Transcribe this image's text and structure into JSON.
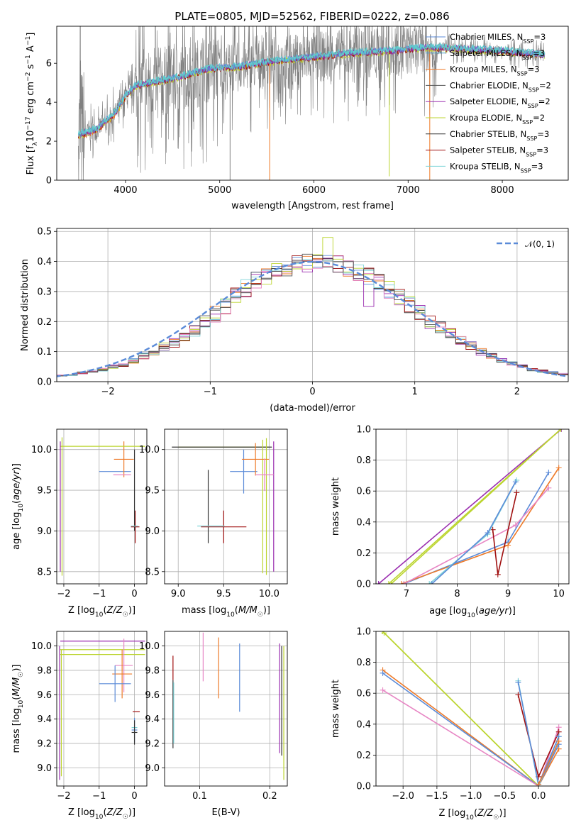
{
  "title": "PLATE=0805, MJD=52562, FIBERID=0222, z=0.086",
  "colors": {
    "Chabrier MILES": "#5b8bd8",
    "Salpeter MILES": "#4aa0c8",
    "Kroupa MILES": "#ee7a28",
    "Chabrier ELODIE": "#555555",
    "Salpeter ELODIE": "#9b2fb0",
    "Kroupa ELODIE": "#bcd530",
    "Chabrier STELIB": "#333333",
    "Salpeter STELIB": "#a01010",
    "Kroupa STELIB": "#7fd4d8",
    "pink": "#e786c4",
    "data": "#808080",
    "fit": "#60cccc",
    "gaussian": "#5b8bd8"
  },
  "chart_data": [
    {
      "type": "line",
      "name": "spectrum",
      "xlabel": "wavelength [Angstrom, rest frame]",
      "ylabel": "Flux [f_λ 10^-17 erg cm^-2 s^-1 A^-1]",
      "xlim": [
        3270,
        8700
      ],
      "ylim": [
        0,
        7.9
      ],
      "xticks": [
        "4000",
        "5000",
        "6000",
        "7000",
        "8000"
      ],
      "yticks": [
        "0",
        "2",
        "4",
        "6"
      ],
      "legend_position": "top-right",
      "continuum": {
        "x": [
          3500,
          3700,
          3900,
          4000,
          4100,
          4300,
          4600,
          4900,
          5200,
          5600,
          6000,
          6400,
          6800,
          7200,
          7600,
          8000,
          8450
        ],
        "y": [
          2.3,
          2.6,
          3.5,
          4.3,
          4.8,
          5.0,
          5.3,
          5.7,
          5.8,
          6.1,
          6.3,
          6.5,
          6.6,
          6.8,
          6.7,
          6.6,
          6.4
        ]
      },
      "legend": [
        "Chabrier MILES, N_SSP=3",
        "Salpeter MILES, N_SSP=3",
        "Kroupa MILES, N_SSP=3",
        "Chabrier ELODIE, N_SSP=2",
        "Salpeter ELODIE, N_SSP=2",
        "Kroupa ELODIE, N_SSP=2",
        "Chabrier STELIB, N_SSP=3",
        "Salpeter STELIB, N_SSP=3",
        "Kroupa STELIB, N_SSP=3"
      ]
    },
    {
      "type": "line",
      "name": "residual histogram",
      "xlabel": "(data-model)/error",
      "ylabel": "Normed distribution",
      "xlim": [
        -2.5,
        2.5
      ],
      "ylim": [
        0,
        0.51
      ],
      "xticks": [
        "−2",
        "−1",
        "0",
        "1",
        "2"
      ],
      "yticks": [
        "0.0",
        "0.1",
        "0.2",
        "0.3",
        "0.4",
        "0.5"
      ],
      "legend": [
        "𝒩(0, 1)"
      ],
      "legend_position": "top-right",
      "bin_width": 0.1,
      "bin_start": -2.5,
      "base_heights": [
        0.02,
        0.022,
        0.03,
        0.035,
        0.04,
        0.05,
        0.055,
        0.07,
        0.085,
        0.1,
        0.115,
        0.13,
        0.145,
        0.17,
        0.2,
        0.225,
        0.25,
        0.285,
        0.31,
        0.335,
        0.35,
        0.365,
        0.38,
        0.39,
        0.395,
        0.4,
        0.398,
        0.39,
        0.38,
        0.365,
        0.35,
        0.33,
        0.305,
        0.28,
        0.255,
        0.23,
        0.2,
        0.18,
        0.16,
        0.14,
        0.12,
        0.1,
        0.085,
        0.07,
        0.06,
        0.05,
        0.04,
        0.035,
        0.03,
        0.025
      ]
    },
    {
      "type": "scatter",
      "name": "age vs Z",
      "xlabel": "Z [log10(Z/Z☉)]",
      "ylabel": "age [log10(age/yr)]",
      "xlim": [
        -2.2,
        0.35
      ],
      "ylim": [
        8.35,
        10.25
      ],
      "xticks": [
        "−2",
        "−1",
        "0"
      ],
      "yticks": [
        "8.5",
        "9.0",
        "9.5",
        "10.0"
      ],
      "points": [
        {
          "c": "Chabrier MILES",
          "x": -0.55,
          "xe": 0.45,
          "y": 9.73,
          "ye": 0.0
        },
        {
          "c": "Kroupa MILES",
          "x": -0.3,
          "xe": 0.28,
          "y": 9.88,
          "ye": 0.22
        },
        {
          "c": "pink",
          "x": -0.35,
          "xe": 0.25,
          "y": 9.69,
          "ye": 0.0
        },
        {
          "c": "Kroupa ELODIE",
          "x": -0.9,
          "xe": 1.2,
          "y": 10.04,
          "ye": 0.0
        },
        {
          "c": "Kroupa ELODIE",
          "x": -2.05,
          "xe": 0.0,
          "y": 9.3,
          "ye": 0.85
        },
        {
          "c": "Salpeter ELODIE",
          "x": -2.1,
          "xe": 0.0,
          "y": 9.3,
          "ye": 0.8
        },
        {
          "c": "Salpeter STELIB",
          "x": 0.02,
          "xe": 0.12,
          "y": 9.05,
          "ye": 0.2
        },
        {
          "c": "Chabrier STELIB",
          "x": 0.0,
          "xe": 0.0,
          "y": 9.5,
          "ye": 0.5
        },
        {
          "c": "Kroupa STELIB",
          "x": 0.0,
          "xe": 0.1,
          "y": 9.06,
          "ye": 0.0
        }
      ]
    },
    {
      "type": "scatter",
      "name": "age vs mass",
      "xlabel": "mass [log10(M/M☉)]",
      "ylabel": "",
      "xlim": [
        8.85,
        10.2
      ],
      "ylim": [
        8.35,
        10.25
      ],
      "xticks": [
        "9.0",
        "9.5",
        "10.0"
      ],
      "yticks": [
        "8.5",
        "9.0",
        "9.5",
        "10.0"
      ],
      "points": [
        {
          "c": "Kroupa ELODIE",
          "x": 9.5,
          "xe": 0.5,
          "y": 10.03,
          "ye": 0.0
        },
        {
          "c": "Chabrier STELIB",
          "x": 9.48,
          "xe": 0.55,
          "y": 10.03,
          "ye": 0.0
        },
        {
          "c": "Kroupa ELODIE",
          "x": 9.93,
          "xe": 0.0,
          "y": 9.3,
          "ye": 0.82
        },
        {
          "c": "Kroupa ELODIE",
          "x": 9.97,
          "xe": 0.0,
          "y": 9.3,
          "ye": 0.84
        },
        {
          "c": "Salpeter ELODIE",
          "x": 10.05,
          "xe": 0.0,
          "y": 9.3,
          "ye": 0.8
        },
        {
          "c": "Chabrier MILES",
          "x": 9.72,
          "xe": 0.15,
          "y": 9.73,
          "ye": 0.27
        },
        {
          "c": "Kroupa MILES",
          "x": 9.85,
          "xe": 0.15,
          "y": 9.88,
          "ye": 0.2
        },
        {
          "c": "pink",
          "x": 9.95,
          "xe": 0.1,
          "y": 9.69,
          "ye": 0.2
        },
        {
          "c": "Chabrier STELIB",
          "x": 9.33,
          "xe": 0.0,
          "y": 9.3,
          "ye": 0.45
        },
        {
          "c": "Salpeter STELIB",
          "x": 9.5,
          "xe": 0.25,
          "y": 9.05,
          "ye": 0.2
        },
        {
          "c": "Kroupa STELIB",
          "x": 9.36,
          "xe": 0.15,
          "y": 9.06,
          "ye": 0.0
        }
      ]
    },
    {
      "type": "line",
      "name": "cumulative mass weight vs age",
      "xlabel": "age [log10(age/yr)]",
      "ylabel": "mass weight",
      "xlim": [
        6.4,
        10.2
      ],
      "ylim": [
        0,
        1.0
      ],
      "xticks": [
        "7",
        "8",
        "9",
        "10"
      ],
      "yticks": [
        "0.0",
        "0.2",
        "0.4",
        "0.6",
        "0.8",
        "1.0"
      ],
      "series": [
        {
          "c": "Salpeter ELODIE",
          "x": [
            6.45,
            10.05
          ],
          "y": [
            0.0,
            1.0
          ]
        },
        {
          "c": "Kroupa ELODIE",
          "x": [
            6.7,
            10.04
          ],
          "y": [
            0.0,
            1.0
          ]
        },
        {
          "c": "Kroupa ELODIE",
          "x": [
            6.65,
            10.04
          ],
          "y": [
            0.0,
            1.0
          ]
        },
        {
          "c": "Chabrier MILES",
          "x": [
            6.95,
            9.0,
            9.8
          ],
          "y": [
            0.0,
            0.27,
            0.72
          ]
        },
        {
          "c": "Kroupa MILES",
          "x": [
            6.9,
            9.0,
            10.0
          ],
          "y": [
            0.0,
            0.25,
            0.75
          ]
        },
        {
          "c": "pink",
          "x": [
            6.95,
            9.15,
            9.8
          ],
          "y": [
            0.0,
            0.38,
            0.62
          ]
        },
        {
          "c": "Salpeter STELIB",
          "x": [
            8.7,
            8.8,
            9.17
          ],
          "y": [
            0.35,
            0.06,
            0.59
          ]
        },
        {
          "c": "Kroupa STELIB",
          "x": [
            7.45,
            8.6,
            9.17
          ],
          "y": [
            0.0,
            0.32,
            0.67
          ]
        },
        {
          "c": "Chabrier MILES",
          "x": [
            7.5,
            8.6,
            9.15
          ],
          "y": [
            0.0,
            0.33,
            0.66
          ]
        }
      ]
    },
    {
      "type": "scatter",
      "name": "mass vs Z",
      "xlabel": "Z [log10(Z/Z☉)]",
      "ylabel": "mass [log10(M/M☉)]",
      "xlim": [
        -2.2,
        0.35
      ],
      "ylim": [
        8.85,
        10.12
      ],
      "xticks": [
        "−2",
        "−1",
        "0"
      ],
      "yticks": [
        "9.0",
        "9.2",
        "9.4",
        "9.6",
        "9.8",
        "10.0"
      ],
      "points": [
        {
          "c": "Salpeter ELODIE",
          "x": -0.9,
          "xe": 1.2,
          "y": 10.04,
          "ye": 0.0
        },
        {
          "c": "Kroupa ELODIE",
          "x": -0.9,
          "xe": 1.2,
          "y": 9.97,
          "ye": 0.0
        },
        {
          "c": "Kroupa ELODIE",
          "x": -0.9,
          "xe": 1.2,
          "y": 9.93,
          "ye": 0.0
        },
        {
          "c": "Kroupa ELODIE",
          "x": -2.07,
          "xe": 0.0,
          "y": 9.45,
          "ye": 0.52
        },
        {
          "c": "Salpeter ELODIE",
          "x": -2.12,
          "xe": 0.0,
          "y": 9.45,
          "ye": 0.55
        },
        {
          "c": "pink",
          "x": -0.3,
          "xe": 0.25,
          "y": 9.84,
          "ye": 0.22
        },
        {
          "c": "Kroupa MILES",
          "x": -0.35,
          "xe": 0.28,
          "y": 9.77,
          "ye": 0.2
        },
        {
          "c": "Chabrier MILES",
          "x": -0.55,
          "xe": 0.45,
          "y": 9.69,
          "ye": 0.15
        },
        {
          "c": "Salpeter STELIB",
          "x": 0.05,
          "xe": 0.1,
          "y": 9.46,
          "ye": 0.0
        },
        {
          "c": "Kroupa STELIB",
          "x": 0.0,
          "xe": 0.08,
          "y": 9.33,
          "ye": 0.0
        },
        {
          "c": "Chabrier MILES",
          "x": 0.0,
          "xe": 0.08,
          "y": 9.31,
          "ye": 0.1
        },
        {
          "c": "Chabrier STELIB",
          "x": 0.0,
          "xe": 0.08,
          "y": 9.29,
          "ye": 0.1
        }
      ]
    },
    {
      "type": "scatter",
      "name": "mass vs E(B-V)",
      "xlabel": "E(B-V)",
      "ylabel": "",
      "xlim": [
        0.05,
        0.225
      ],
      "ylim": [
        8.85,
        10.12
      ],
      "xticks": [
        "0.1",
        "0.2"
      ],
      "yticks": [
        "9.0",
        "9.2",
        "9.4",
        "9.6",
        "9.8",
        "10.0"
      ],
      "points": [
        {
          "c": "Salpeter STELIB",
          "x": 0.062,
          "y": 9.82,
          "ye": 0.1
        },
        {
          "c": "Chabrier STELIB",
          "x": 0.062,
          "y": 9.44,
          "ye": 0.28
        },
        {
          "c": "Kroupa STELIB",
          "x": 0.063,
          "y": 9.45,
          "ye": 0.25
        },
        {
          "c": "pink",
          "x": 0.105,
          "y": 9.91,
          "ye": 0.2
        },
        {
          "c": "Kroupa MILES",
          "x": 0.127,
          "y": 9.82,
          "ye": 0.25
        },
        {
          "c": "Chabrier MILES",
          "x": 0.157,
          "y": 9.74,
          "ye": 0.28
        },
        {
          "c": "Salpeter ELODIE",
          "x": 0.214,
          "y": 9.57,
          "ye": 0.45
        },
        {
          "c": "Chabrier STELIB",
          "x": 0.217,
          "y": 9.55,
          "ye": 0.45
        },
        {
          "c": "Kroupa ELODIE",
          "x": 0.22,
          "y": 9.45,
          "ye": 0.55
        }
      ]
    },
    {
      "type": "line",
      "name": "cumulative mass weight vs Z",
      "xlabel": "Z [log10(Z/Z☉)]",
      "ylabel": "mass weight",
      "xlim": [
        -2.4,
        0.45
      ],
      "ylim": [
        0,
        1.0
      ],
      "xticks": [
        "−2.0",
        "−1.5",
        "−1.0",
        "−0.5",
        "0.0"
      ],
      "yticks": [
        "0.0",
        "0.2",
        "0.4",
        "0.6",
        "0.8",
        "1.0"
      ],
      "series": [
        {
          "c": "Kroupa ELODIE",
          "x": [
            -2.3,
            0.0
          ],
          "y": [
            1.0,
            0.0
          ]
        },
        {
          "c": "Kroupa ELODIE",
          "x": [
            -2.28,
            0.0
          ],
          "y": [
            0.99,
            0.0
          ]
        },
        {
          "c": "Kroupa MILES",
          "x": [
            -2.3,
            0.0,
            0.3
          ],
          "y": [
            0.75,
            0.0,
            0.24
          ]
        },
        {
          "c": "Chabrier MILES",
          "x": [
            -2.3,
            0.0,
            0.3
          ],
          "y": [
            0.73,
            0.0,
            0.27
          ]
        },
        {
          "c": "pink",
          "x": [
            -2.3,
            0.0,
            0.3
          ],
          "y": [
            0.62,
            0.0,
            0.38
          ]
        },
        {
          "c": "Salpeter STELIB",
          "x": [
            -0.3,
            0.0,
            0.3
          ],
          "y": [
            0.59,
            0.06,
            0.35
          ]
        },
        {
          "c": "Kroupa STELIB",
          "x": [
            -0.3,
            0.0,
            0.3
          ],
          "y": [
            0.68,
            0.0,
            0.32
          ]
        },
        {
          "c": "Chabrier MILES",
          "x": [
            -0.3,
            0.0,
            0.3
          ],
          "y": [
            0.67,
            0.01,
            0.32
          ]
        },
        {
          "c": "Kroupa MILES",
          "x": [
            0.0,
            0.3
          ],
          "y": [
            0.01,
            0.29
          ]
        }
      ]
    }
  ]
}
